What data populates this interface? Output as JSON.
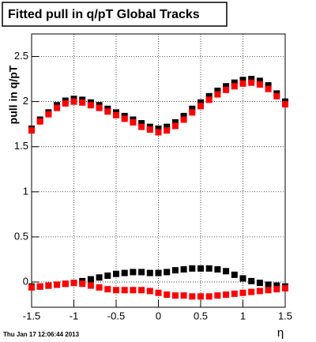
{
  "chart_data": {
    "type": "scatter",
    "title": "Fitted pull in q/pT  Global Tracks",
    "y_label": "pull in q/pT",
    "x_label": "η",
    "timestamp": "Thu Jan 17 12:06:44 2013",
    "x": [
      -1.5,
      -1.4,
      -1.3,
      -1.2,
      -1.1,
      -1.0,
      -0.9,
      -0.8,
      -0.7,
      -0.6,
      -0.5,
      -0.4,
      -0.3,
      -0.2,
      -0.1,
      0,
      0.1,
      0.2,
      0.3,
      0.4,
      0.5,
      0.6,
      0.7,
      0.8,
      0.9,
      1.0,
      1.1,
      1.2,
      1.3,
      1.4,
      1.5
    ],
    "series": [
      {
        "color": "#000000",
        "values": [
          1.7,
          1.8,
          1.88,
          1.96,
          2.01,
          2.03,
          2.02,
          1.99,
          1.96,
          1.92,
          1.88,
          1.84,
          1.8,
          1.76,
          1.72,
          1.7,
          1.72,
          1.77,
          1.84,
          1.92,
          1.99,
          2.06,
          2.12,
          2.17,
          2.21,
          2.24,
          2.25,
          2.23,
          2.18,
          2.09,
          2.0
        ]
      },
      {
        "color": "#000000",
        "values": [
          -0.05,
          -0.05,
          -0.04,
          -0.03,
          -0.02,
          -0.01,
          0.01,
          0.03,
          0.05,
          0.07,
          0.09,
          0.1,
          0.11,
          0.11,
          0.1,
          0.1,
          0.11,
          0.13,
          0.14,
          0.15,
          0.15,
          0.15,
          0.14,
          0.12,
          0.08,
          0.04,
          0.01,
          -0.01,
          -0.03,
          -0.04,
          -0.05
        ]
      },
      {
        "color": "#ff0000",
        "values": [
          1.68,
          1.78,
          1.86,
          1.93,
          1.98,
          2.0,
          1.99,
          1.96,
          1.93,
          1.89,
          1.85,
          1.81,
          1.77,
          1.72,
          1.69,
          1.66,
          1.68,
          1.73,
          1.8,
          1.88,
          1.95,
          2.02,
          2.08,
          2.13,
          2.17,
          2.2,
          2.21,
          2.19,
          2.14,
          2.06,
          1.97
        ]
      },
      {
        "color": "#ff0000",
        "values": [
          -0.06,
          -0.05,
          -0.04,
          -0.03,
          -0.02,
          -0.01,
          -0.02,
          -0.04,
          -0.06,
          -0.08,
          -0.09,
          -0.09,
          -0.09,
          -0.09,
          -0.1,
          -0.12,
          -0.14,
          -0.15,
          -0.15,
          -0.16,
          -0.16,
          -0.16,
          -0.15,
          -0.14,
          -0.13,
          -0.12,
          -0.11,
          -0.1,
          -0.09,
          -0.08,
          -0.07
        ]
      }
    ],
    "xlim": [
      -1.5,
      1.5
    ],
    "xticks": [
      -1.5,
      -1,
      -0.5,
      0,
      0.5,
      1,
      1.5
    ],
    "ylim": [
      -0.28,
      2.75
    ],
    "yticks": [
      0,
      0.5,
      1,
      1.5,
      2,
      2.5
    ],
    "grid": true
  }
}
